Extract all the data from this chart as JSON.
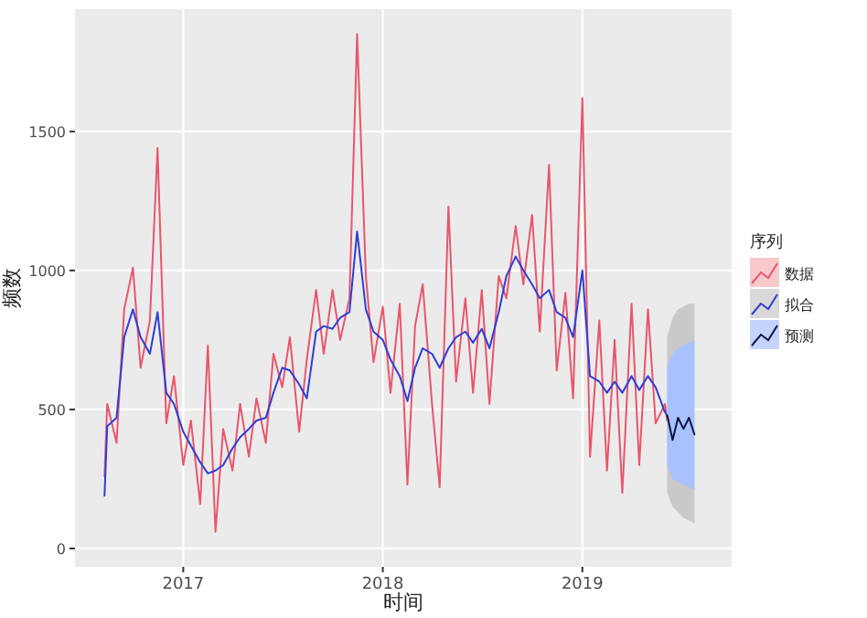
{
  "chart_data": {
    "type": "line",
    "xlabel": "时间",
    "ylabel": "频数",
    "legend_title": "序列",
    "legend": "right",
    "grid": true,
    "xlim": [
      "2016-06-17",
      "2019-10-01"
    ],
    "xticks": [
      {
        "value": "2017-01-01",
        "label": "2017"
      },
      {
        "value": "2018-01-01",
        "label": "2018"
      },
      {
        "value": "2019-01-01",
        "label": "2019"
      }
    ],
    "ylim": [
      -66,
      1940
    ],
    "yticks": [
      0,
      500,
      1000,
      1500
    ],
    "series": [
      {
        "name": "数据",
        "color": "#e8566c",
        "x": [
          "2016-08-10",
          "2016-08-15",
          "2016-09-01",
          "2016-09-15",
          "2016-10-01",
          "2016-10-15",
          "2016-11-01",
          "2016-11-15",
          "2016-12-01",
          "2016-12-15",
          "2017-01-01",
          "2017-01-15",
          "2017-02-01",
          "2017-02-15",
          "2017-03-01",
          "2017-03-15",
          "2017-04-01",
          "2017-04-15",
          "2017-05-01",
          "2017-05-15",
          "2017-06-01",
          "2017-06-15",
          "2017-07-01",
          "2017-07-15",
          "2017-08-01",
          "2017-08-15",
          "2017-09-01",
          "2017-09-15",
          "2017-10-01",
          "2017-10-15",
          "2017-11-01",
          "2017-11-15",
          "2017-12-01",
          "2017-12-15",
          "2018-01-01",
          "2018-01-15",
          "2018-02-01",
          "2018-02-15",
          "2018-03-01",
          "2018-03-15",
          "2018-04-01",
          "2018-04-15",
          "2018-05-01",
          "2018-05-15",
          "2018-06-01",
          "2018-06-15",
          "2018-07-01",
          "2018-07-15",
          "2018-08-01",
          "2018-08-15",
          "2018-09-01",
          "2018-09-15",
          "2018-10-01",
          "2018-10-15",
          "2018-11-01",
          "2018-11-15",
          "2018-12-01",
          "2018-12-15",
          "2019-01-01",
          "2019-01-15",
          "2019-02-01",
          "2019-02-15",
          "2019-03-01",
          "2019-03-15",
          "2019-04-01",
          "2019-04-15",
          "2019-05-01",
          "2019-05-15",
          "2019-06-01",
          "2019-06-05"
        ],
        "values": [
          260,
          520,
          380,
          860,
          1010,
          650,
          820,
          1440,
          450,
          620,
          300,
          460,
          160,
          730,
          60,
          430,
          280,
          520,
          330,
          540,
          380,
          700,
          580,
          760,
          420,
          680,
          930,
          700,
          930,
          750,
          900,
          1850,
          980,
          670,
          870,
          560,
          880,
          230,
          800,
          950,
          520,
          220,
          1230,
          600,
          900,
          560,
          930,
          520,
          980,
          900,
          1160,
          950,
          1200,
          780,
          1380,
          640,
          920,
          540,
          1620,
          330,
          820,
          280,
          750,
          200,
          880,
          300,
          860,
          450,
          520,
          460
        ]
      },
      {
        "name": "拟合",
        "color": "#2e3fd6",
        "x": [
          "2016-08-10",
          "2016-08-15",
          "2016-09-01",
          "2016-09-15",
          "2016-10-01",
          "2016-10-15",
          "2016-11-01",
          "2016-11-15",
          "2016-12-01",
          "2016-12-15",
          "2017-01-01",
          "2017-01-15",
          "2017-02-01",
          "2017-02-15",
          "2017-03-01",
          "2017-03-15",
          "2017-04-01",
          "2017-04-15",
          "2017-05-01",
          "2017-05-15",
          "2017-06-01",
          "2017-06-15",
          "2017-07-01",
          "2017-07-15",
          "2017-08-01",
          "2017-08-15",
          "2017-09-01",
          "2017-09-15",
          "2017-10-01",
          "2017-10-15",
          "2017-11-01",
          "2017-11-15",
          "2017-12-01",
          "2017-12-15",
          "2018-01-01",
          "2018-01-15",
          "2018-02-01",
          "2018-02-15",
          "2018-03-01",
          "2018-03-15",
          "2018-04-01",
          "2018-04-15",
          "2018-05-01",
          "2018-05-15",
          "2018-06-01",
          "2018-06-15",
          "2018-07-01",
          "2018-07-15",
          "2018-08-01",
          "2018-08-15",
          "2018-09-01",
          "2018-09-15",
          "2018-10-01",
          "2018-10-15",
          "2018-11-01",
          "2018-11-15",
          "2018-12-01",
          "2018-12-15",
          "2019-01-01",
          "2019-01-15",
          "2019-02-01",
          "2019-02-15",
          "2019-03-01",
          "2019-03-15",
          "2019-04-01",
          "2019-04-15",
          "2019-05-01",
          "2019-05-15",
          "2019-06-01",
          "2019-06-05"
        ],
        "values": [
          190,
          440,
          470,
          760,
          860,
          760,
          700,
          850,
          560,
          520,
          420,
          370,
          310,
          270,
          280,
          300,
          360,
          400,
          430,
          460,
          470,
          560,
          650,
          640,
          590,
          540,
          780,
          800,
          790,
          830,
          850,
          1140,
          860,
          780,
          750,
          680,
          620,
          530,
          650,
          720,
          700,
          650,
          720,
          760,
          780,
          740,
          790,
          720,
          850,
          980,
          1050,
          1000,
          950,
          900,
          930,
          850,
          830,
          760,
          1000,
          620,
          600,
          560,
          600,
          560,
          620,
          570,
          620,
          580,
          490,
          480
        ]
      },
      {
        "color": "#c9c9c9",
        "type": "area",
        "x": [
          "2019-06-05",
          "2019-06-15",
          "2019-06-25",
          "2019-07-05",
          "2019-07-15",
          "2019-07-25"
        ],
        "values": [
          null,
          null,
          null,
          null,
          null,
          null
        ],
        "lower": [
          200,
          150,
          130,
          110,
          100,
          90
        ],
        "upper": [
          760,
          830,
          860,
          870,
          880,
          880
        ]
      },
      {
        "color": "#a9c1ff",
        "type": "area",
        "x": [
          "2019-06-05",
          "2019-06-15",
          "2019-06-25",
          "2019-07-05",
          "2019-07-15",
          "2019-07-25"
        ],
        "values": [
          null,
          null,
          null,
          null,
          null,
          null
        ],
        "lower": [
          300,
          250,
          240,
          230,
          220,
          210
        ],
        "upper": [
          660,
          700,
          720,
          730,
          740,
          750
        ]
      },
      {
        "name": "预测",
        "color": "#0d1640",
        "x": [
          "2019-06-05",
          "2019-06-15",
          "2019-06-25",
          "2019-07-05",
          "2019-07-15",
          "2019-07-25"
        ],
        "values": [
          480,
          390,
          470,
          430,
          470,
          410
        ]
      }
    ]
  }
}
